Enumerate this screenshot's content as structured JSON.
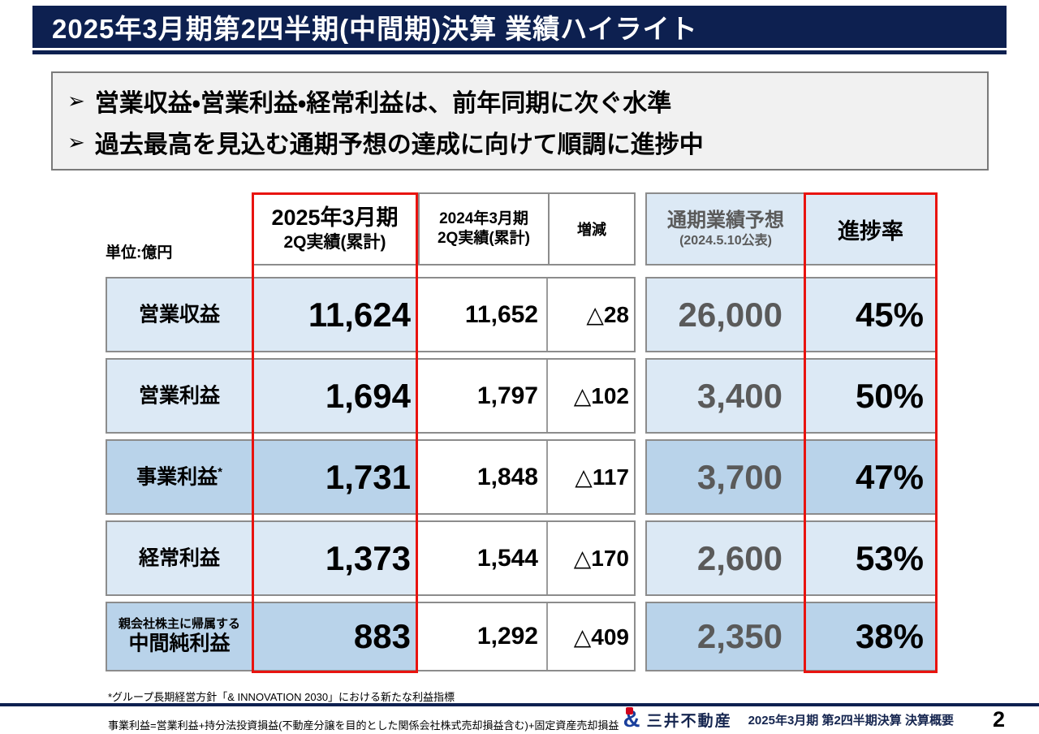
{
  "header": {
    "title": "2025年3月期第2四半期(中間期)決算 業績ハイライト"
  },
  "highlights": {
    "bullet_char": "➢",
    "items": [
      "営業収益・営業利益・経常利益は、前年同期に次ぐ水準",
      "過去最高を見込む通期予想の達成に向けて順調に進捗中"
    ]
  },
  "table": {
    "unit_label": "単位:億円",
    "columns": {
      "current": {
        "line1": "2025年3月期",
        "line2": "2Q実績(累計)"
      },
      "previous": {
        "line1": "2024年3月期",
        "line2": "2Q実績(累計)"
      },
      "change": "増減",
      "forecast": {
        "line1": "通期業績予想",
        "line2": "(2024.5.10公表)"
      },
      "progress": "進捗率"
    },
    "rows": [
      {
        "label": "営業収益",
        "label_sup": "",
        "label_note": "",
        "current": "11,624",
        "previous": "11,652",
        "change": "△28",
        "forecast": "26,000",
        "progress": "45%",
        "highlight": false
      },
      {
        "label": "営業利益",
        "label_sup": "",
        "label_note": "",
        "current": "1,694",
        "previous": "1,797",
        "change": "△102",
        "forecast": "3,400",
        "progress": "50%",
        "highlight": false
      },
      {
        "label": "事業利益",
        "label_sup": "*",
        "label_note": "",
        "current": "1,731",
        "previous": "1,848",
        "change": "△117",
        "forecast": "3,700",
        "progress": "47%",
        "highlight": true
      },
      {
        "label": "経常利益",
        "label_sup": "",
        "label_note": "",
        "current": "1,373",
        "previous": "1,544",
        "change": "△170",
        "forecast": "2,600",
        "progress": "53%",
        "highlight": false
      },
      {
        "label": "中間純利益",
        "label_sup": "",
        "label_note": "親会社株主に帰属する",
        "current": "883",
        "previous": "1,292",
        "change": "△409",
        "forecast": "2,350",
        "progress": "38%",
        "highlight": true
      }
    ]
  },
  "footnotes": [
    "*グループ長期経営方針「& INNOVATION 2030」における新たな利益指標",
    " 事業利益=営業利益+持分法投資損益(不動産分譲を目的とした関係会社株式売却損益含む)+固定資産売却損益"
  ],
  "footer": {
    "logo_char": "&",
    "company": "三井不動産",
    "caption": "2025年3月期 第2四半期決算 決算概要",
    "page": "2"
  },
  "colors": {
    "navy": "#0d2050",
    "red": "#e8130f",
    "blue_light": "#dce9f5",
    "blue_dark": "#b9d3ea",
    "gray_border": "#8c8c8c",
    "gray_text": "#5a5a5a"
  }
}
